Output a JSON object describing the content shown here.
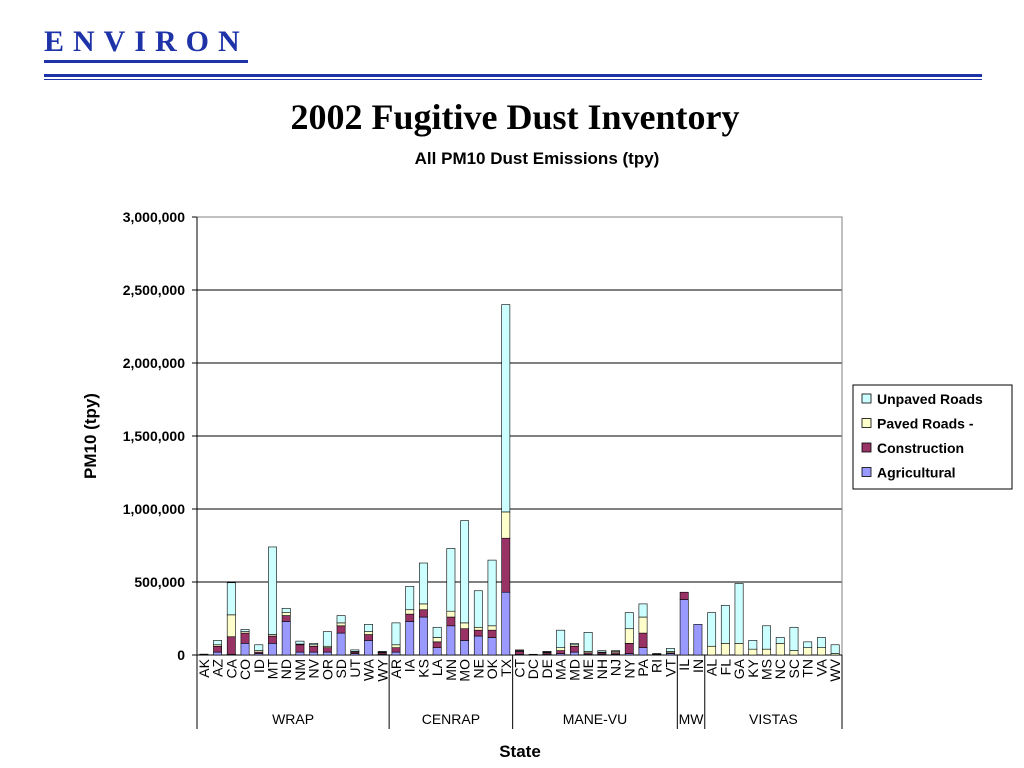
{
  "logo": {
    "text": "ENVIRON"
  },
  "slide": {
    "title": "2002 Fugitive Dust Inventory"
  },
  "chart_data": {
    "type": "bar",
    "stacked": true,
    "title": "All PM10 Dust Emissions (tpy)",
    "xlabel": "State",
    "ylabel": "PM10 (tpy)",
    "ylim": [
      0,
      3000000
    ],
    "yticks": [
      "0",
      "500,000",
      "1,000,000",
      "1,500,000",
      "2,000,000",
      "2,500,000",
      "3,000,000"
    ],
    "grid": true,
    "legend_position": "right",
    "categories": [
      "AK",
      "AZ",
      "CA",
      "CO",
      "ID",
      "MT",
      "ND",
      "NM",
      "NV",
      "OR",
      "SD",
      "UT",
      "WA",
      "WY",
      "AR",
      "IA",
      "KS",
      "LA",
      "MN",
      "MO",
      "NE",
      "OK",
      "TX",
      "CT",
      "DC",
      "DE",
      "MA",
      "MD",
      "ME",
      "NH",
      "NJ",
      "NY",
      "PA",
      "RI",
      "VT",
      "IL",
      "IN",
      "AL",
      "FL",
      "GA",
      "KY",
      "MS",
      "NC",
      "SC",
      "TN",
      "VA",
      "WV"
    ],
    "groups": [
      {
        "name": "WRAP",
        "start": 0,
        "end": 13
      },
      {
        "name": "CENRAP",
        "start": 14,
        "end": 22
      },
      {
        "name": "MANE-VU",
        "start": 23,
        "end": 34
      },
      {
        "name": "MW",
        "start": 35,
        "end": 36
      },
      {
        "name": "VISTAS",
        "start": 37,
        "end": 46
      }
    ],
    "series": [
      {
        "name": "Agricultural",
        "color": "#9999ff",
        "values": [
          2000,
          20000,
          5000,
          80000,
          10000,
          80000,
          230000,
          20000,
          20000,
          20000,
          150000,
          10000,
          100000,
          5000,
          20000,
          230000,
          260000,
          50000,
          200000,
          100000,
          130000,
          120000,
          430000,
          5000,
          0,
          5000,
          10000,
          20000,
          5000,
          5000,
          5000,
          10000,
          50000,
          0,
          10000,
          380000,
          210000,
          0,
          0,
          0,
          0,
          0,
          0,
          0,
          0,
          0,
          0
        ]
      },
      {
        "name": "Construction",
        "color": "#993366",
        "values": [
          2000,
          40000,
          120000,
          70000,
          10000,
          50000,
          40000,
          50000,
          40000,
          30000,
          50000,
          10000,
          40000,
          10000,
          30000,
          50000,
          50000,
          40000,
          60000,
          80000,
          40000,
          50000,
          370000,
          20000,
          3000,
          10000,
          20000,
          40000,
          10000,
          10000,
          10000,
          70000,
          100000,
          5000,
          5000,
          50000,
          0,
          0,
          0,
          0,
          0,
          0,
          0,
          0,
          0,
          0,
          0
        ]
      },
      {
        "name": "Paved Roads -",
        "color": "#ffffcc",
        "values": [
          0,
          10000,
          150000,
          10000,
          10000,
          10000,
          20000,
          5000,
          10000,
          10000,
          20000,
          5000,
          20000,
          5000,
          20000,
          30000,
          40000,
          30000,
          40000,
          40000,
          20000,
          30000,
          180000,
          5000,
          2000,
          5000,
          20000,
          10000,
          10000,
          5000,
          10000,
          100000,
          110000,
          2000,
          10000,
          0,
          0,
          60000,
          80000,
          80000,
          40000,
          40000,
          80000,
          30000,
          50000,
          50000,
          10000
        ]
      },
      {
        "name": "Unpaved Roads",
        "color": "#ccffff",
        "values": [
          2000,
          30000,
          220000,
          15000,
          40000,
          600000,
          30000,
          20000,
          10000,
          100000,
          50000,
          10000,
          50000,
          5000,
          150000,
          160000,
          280000,
          70000,
          430000,
          700000,
          250000,
          450000,
          1420000,
          5000,
          0,
          5000,
          120000,
          10000,
          130000,
          10000,
          5000,
          110000,
          90000,
          3000,
          20000,
          0,
          0,
          230000,
          260000,
          410000,
          60000,
          160000,
          40000,
          160000,
          40000,
          70000,
          60000
        ]
      }
    ]
  }
}
